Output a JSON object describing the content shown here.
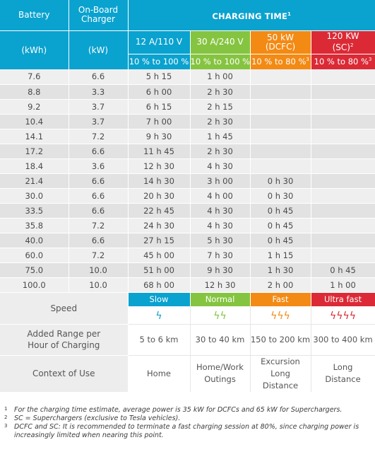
{
  "header": {
    "battery": "Battery",
    "battery_unit": "(kWh)",
    "onboard": "On-Board Charger",
    "onboard_unit": "(kW)",
    "charging_time": "CHARGING TIME",
    "charging_time_sup": "1",
    "col1_title": "12 A/110 V",
    "col1_pct": "10 % to 100 %",
    "col2_title": "30 A/240 V",
    "col2_pct": "10 % to 100 %",
    "col3_title_a": "50 kW",
    "col3_title_b": "(DCFC)",
    "col3_pct": "10 % to 80 %",
    "col3_pct_sup": "3",
    "col4_title_a": "120 KW",
    "col4_title_b": "(SC)",
    "col4_title_sup": "2",
    "col4_pct": "10 % to 80 %",
    "col4_pct_sup": "3"
  },
  "rows": [
    [
      "7.6",
      "6.6",
      "5 h 15",
      "1 h 00",
      "",
      ""
    ],
    [
      "8.8",
      "3.3",
      "6 h 00",
      "2 h 30",
      "",
      ""
    ],
    [
      "9.2",
      "3.7",
      "6 h 15",
      "2 h 15",
      "",
      ""
    ],
    [
      "10.4",
      "3.7",
      "7 h 00",
      "2 h 30",
      "",
      ""
    ],
    [
      "14.1",
      "7.2",
      "9 h 30",
      "1 h 45",
      "",
      ""
    ],
    [
      "17.2",
      "6.6",
      "11 h 45",
      "2 h 30",
      "",
      ""
    ],
    [
      "18.4",
      "3.6",
      "12 h 30",
      "4 h 30",
      "",
      ""
    ],
    [
      "21.4",
      "6.6",
      "14 h 30",
      "3 h 00",
      "0 h 30",
      ""
    ],
    [
      "30.0",
      "6.6",
      "20 h 30",
      "4 h 00",
      "0 h 30",
      ""
    ],
    [
      "33.5",
      "6.6",
      "22 h 45",
      "4 h 30",
      "0 h 45",
      ""
    ],
    [
      "35.8",
      "7.2",
      "24 h 30",
      "4 h 30",
      "0 h 45",
      ""
    ],
    [
      "40.0",
      "6.6",
      "27 h 15",
      "5 h 30",
      "0 h 45",
      ""
    ],
    [
      "60.0",
      "7.2",
      "45 h 00",
      "7 h 30",
      "1 h 15",
      ""
    ],
    [
      "75.0",
      "10.0",
      "51 h 00",
      "9 h 30",
      "1 h 30",
      "0 h 45"
    ],
    [
      "100.0",
      "10.0",
      "68 h 00",
      "12 h 30",
      "2 h 00",
      "1 h 00"
    ]
  ],
  "speed": {
    "label": "Speed",
    "slow": "Slow",
    "normal": "Normal",
    "fast": "Fast",
    "ultra": "Ultra fast",
    "slow_icon": "ϟ",
    "normal_icon": "ϟϟ",
    "fast_icon": "ϟϟϟ",
    "ultra_icon": "ϟϟϟϟ"
  },
  "range": {
    "label": "Added Range per Hour of Charging",
    "slow": "5 to 6 km",
    "normal": "30 to 40 km",
    "fast": "150 to 200 km",
    "ultra": "300 to 400 km"
  },
  "context": {
    "label": "Context of Use",
    "slow": "Home",
    "normal": "Home/Work Outings",
    "fast": "Excursion Long Distance",
    "ultra": "Long Distance"
  },
  "notes": [
    {
      "num": "1",
      "text": "For the charging time estimate, average power is 35 kW for DCFCs and 65 kW for Superchargers."
    },
    {
      "num": "2",
      "text": "SC = Superchargers (exclusive to Tesla vehicles)."
    },
    {
      "num": "3",
      "text": "DCFC and SC: It is recommended to terminate a fast charging session at 80%, since charging power is increasingly limited when nearing this point."
    }
  ],
  "colors": {
    "blue": "#0aa2cf",
    "green": "#85c440",
    "orange": "#f38a14",
    "red": "#db2a36"
  }
}
